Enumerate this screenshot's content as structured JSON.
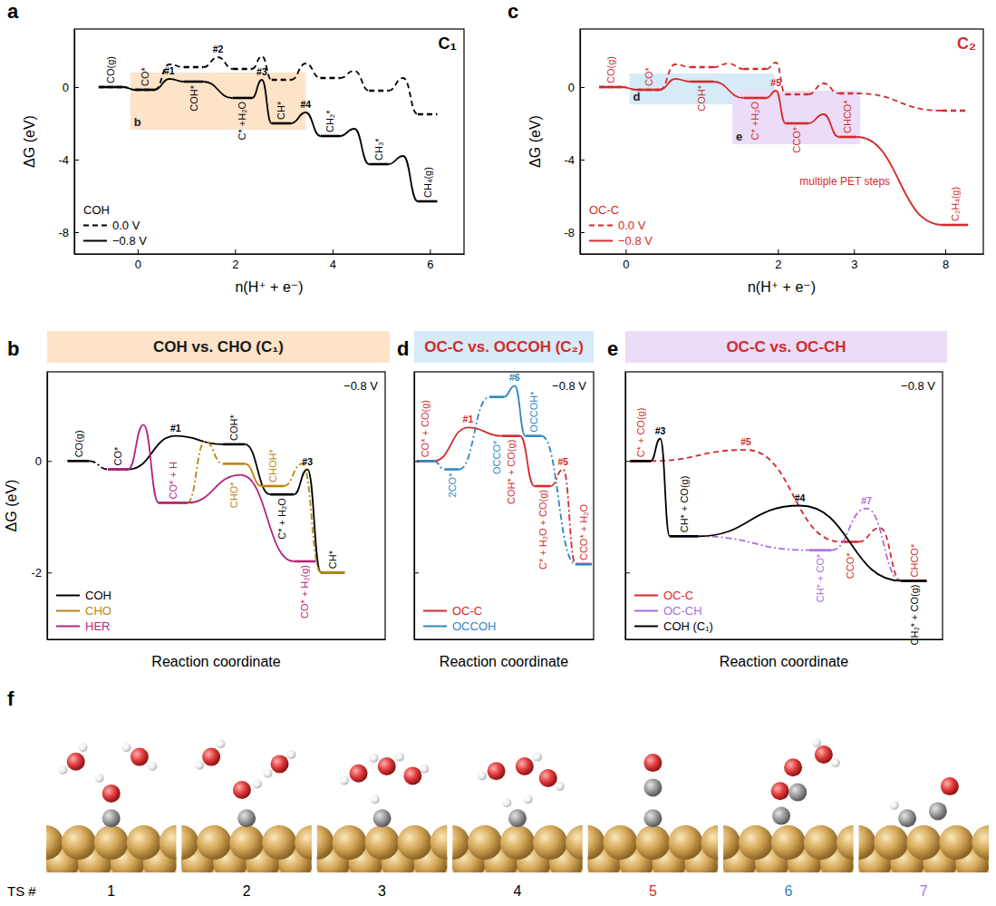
{
  "chart_data": [
    {
      "type": "energy_diagram",
      "panel": "a",
      "subtitle": "C₁",
      "x_label": "n(H⁺ + e⁻)",
      "y_label": "ΔG (eV)",
      "xlim": [
        -1.3,
        6.7
      ],
      "xticks": [
        0,
        2,
        4,
        6
      ],
      "ylim": [
        -9.2,
        3.2
      ],
      "yticks": [
        -8,
        -4,
        0
      ],
      "legend": "lower left",
      "legend_title": "COH",
      "regions": [
        {
          "label": "b",
          "x": [
            -0.15,
            3.45
          ],
          "y": [
            -2.35,
            0.8
          ],
          "color": "#fde3c8"
        }
      ],
      "series": [
        {
          "name": "0.0 V",
          "color": "#000000",
          "line_style": "dashed",
          "states": [
            {
              "x": [
                -0.8,
                -0.3
              ],
              "value": 0
            },
            {
              "x": [
                -0.05,
                0.35
              ],
              "value": -0.15
            },
            {
              "x": [
                0.95,
                1.35
              ],
              "value": 1.1
            },
            {
              "x": [
                1.95,
                2.35
              ],
              "value": 1
            },
            {
              "x": [
                2.75,
                3.15
              ],
              "value": 0.4
            },
            {
              "x": [
                3.75,
                4.15
              ],
              "value": 0.5
            },
            {
              "x": [
                4.75,
                5.15
              ],
              "value": -0.2
            },
            {
              "x": [
                5.75,
                6.15
              ],
              "value": -1.5
            }
          ],
          "barriers": [
            {
              "peak": null
            },
            {
              "peak": 1.25
            },
            {
              "peak": 1.65,
              "label": "#2"
            },
            {
              "peak": 1.7
            },
            {
              "peak": 1.3
            },
            {
              "peak": 0.9
            },
            {
              "peak": 0.5
            }
          ]
        },
        {
          "name": "−0.8 V",
          "color": "#000000",
          "line_style": "solid",
          "states": [
            {
              "label": "CO(g)",
              "x": [
                -0.8,
                -0.3
              ],
              "value": 0
            },
            {
              "label": "CO*",
              "x": [
                -0.05,
                0.35
              ],
              "value": -0.15
            },
            {
              "label": "COH*",
              "x": [
                0.95,
                1.35
              ],
              "value": 0.3
            },
            {
              "label": "C* +H₂O",
              "x": [
                1.95,
                2.35
              ],
              "value": -0.6
            },
            {
              "label": "CH*",
              "x": [
                2.75,
                3.15
              ],
              "value": -2
            },
            {
              "label": "CH₂*",
              "x": [
                3.75,
                4.15
              ],
              "value": -2.7
            },
            {
              "label": "CH₃*",
              "x": [
                4.75,
                5.15
              ],
              "value": -4.25
            },
            {
              "label": "CH₄(g)",
              "x": [
                5.75,
                6.15
              ],
              "value": -6.3
            }
          ],
          "barriers": [
            {
              "peak": null
            },
            {
              "peak": 0.45,
              "label": "#1"
            },
            {
              "peak": null
            },
            {
              "peak": 0.4,
              "label": "#3"
            },
            {
              "peak": -1.4,
              "label": "#4"
            },
            {
              "peak": -2.3
            },
            {
              "peak": -3.8
            }
          ]
        }
      ]
    },
    {
      "type": "energy_diagram",
      "panel": "b",
      "title": "COH vs. CHO (C₁)",
      "color": "#fde3c8",
      "condition": "−0.8 V",
      "x_label": "Reaction coordinate",
      "y_label": "ΔG (eV)",
      "xlim": [
        0,
        10
      ],
      "xticks": [],
      "ylim": [
        -3.2,
        1.6
      ],
      "yticks": [
        -2,
        0
      ],
      "tick_labels": "y",
      "legend": "lower left",
      "series": [
        {
          "name": "COH",
          "color": "#000000",
          "line_style": "solid",
          "states": [
            {
              "label": "CO(g)",
              "x": [
                0.6,
                1.25
              ],
              "value": 0
            },
            {
              "label": "CO*",
              "x": [
                1.8,
                2.4
              ],
              "value": -0.15
            },
            {
              "label": "COH*",
              "x": [
                5.2,
                5.85
              ],
              "value": 0.3
            },
            {
              "label": "C* + H₂O",
              "x": [
                6.6,
                7.3
              ],
              "value": -0.6
            },
            {
              "label": "CH*",
              "x": [
                8.1,
                8.8
              ],
              "value": -2
            }
          ],
          "barriers": [
            {
              "peak": null,
              "line_style": "dashdot"
            },
            {
              "peak": 0.45,
              "label": "#1"
            },
            {
              "peak": null
            },
            {
              "peak": -0.15,
              "label": "#3"
            }
          ]
        },
        {
          "name": "CHO",
          "color": "#b8860b",
          "line_style": "solid",
          "states": [
            {
              "x": [
                3.3,
                4.15
              ],
              "value": -0.75
            },
            {
              "label": "CHO*",
              "x": [
                5.2,
                5.85
              ],
              "value": -0.05
            },
            {
              "label": "CHOH*",
              "x": [
                6.35,
                7.0
              ],
              "value": -0.45
            },
            {
              "x": [
                8.1,
                8.8
              ],
              "value": -2
            }
          ],
          "barriers": [
            {
              "peak": 0.35,
              "line_style": "dashdot"
            },
            {
              "peak": null
            },
            {
              "peak": -0.05,
              "line_style": "dashdot"
            }
          ]
        },
        {
          "name": "HER",
          "color": "#b5247e",
          "line_style": "solid",
          "states": [
            {
              "x": [
                1.8,
                2.4
              ],
              "value": -0.15
            },
            {
              "label": "CO* + H",
              "x": [
                3.3,
                4.15
              ],
              "value": -0.75
            },
            {
              "label": "CO* + H₂(g)",
              "x": [
                7.3,
                7.95
              ],
              "value": -1.8
            }
          ],
          "barriers": [
            {
              "peak": 0.65
            },
            {
              "peak": -0.25
            }
          ]
        }
      ]
    },
    {
      "type": "energy_diagram",
      "panel": "c",
      "subtitle": "C₂",
      "x_label": "n(H⁺ + e⁻)",
      "y_label": "ΔG (eV)",
      "xlim": [
        -0.6,
        8.5
      ],
      "xticks": [
        0,
        2,
        3,
        8
      ],
      "ylim": [
        -9.2,
        3.2
      ],
      "yticks": [
        -8,
        -4,
        0
      ],
      "legend": "lower left",
      "legend_title": "OC-C",
      "annotation": "multiple PET steps",
      "regions": [
        {
          "label": "d",
          "x": [
            0.05,
            1.95
          ],
          "y": [
            -0.95,
            0.75
          ],
          "color": "#d6eaf8"
        },
        {
          "label": "e",
          "x": [
            1.4,
            3.35
          ],
          "y": [
            -3.15,
            -0.2
          ],
          "color": "#ebdcf7"
        }
      ],
      "series": [
        {
          "name": "0.0 V",
          "color": "#d42a2a",
          "line_style": "dashed",
          "states": [
            {
              "x": [
                -0.35,
                -0.05
              ],
              "value": 0
            },
            {
              "x": [
                0.15,
                0.45
              ],
              "value": -0.15
            },
            {
              "x": [
                0.85,
                1.15
              ],
              "value": 1.1
            },
            {
              "x": [
                1.55,
                1.85
              ],
              "value": 1
            },
            {
              "x": [
                2.1,
                2.4
              ],
              "value": -0.4
            },
            {
              "x": [
                2.8,
                3.15
              ],
              "value": -0.35
            },
            {
              "x": [
                7.8,
                8.3
              ],
              "value": -1.3
            }
          ],
          "barriers": [
            {
              "peak": null
            },
            {
              "peak": 1.25
            },
            {
              "peak": 1.3
            },
            {
              "peak": 1.35
            },
            {
              "peak": 0.2
            },
            {
              "peak": null
            }
          ]
        },
        {
          "name": "−0.8 V",
          "color": "#d42a2a",
          "line_style": "solid",
          "states": [
            {
              "label": "CO(g)",
              "x": [
                -0.35,
                -0.05
              ],
              "value": 0
            },
            {
              "label": "CO*",
              "x": [
                0.15,
                0.45
              ],
              "value": -0.15
            },
            {
              "label": "COH*",
              "x": [
                0.85,
                1.15
              ],
              "value": 0.3
            },
            {
              "label": "C* +H₂O",
              "x": [
                1.55,
                1.85
              ],
              "value": -0.6
            },
            {
              "label": "CCO*",
              "x": [
                2.1,
                2.4
              ],
              "value": -2
            },
            {
              "label": "CHCO*",
              "x": [
                2.8,
                3.15
              ],
              "value": -2.75
            },
            {
              "label": "C₂H₄(g)",
              "x": [
                7.8,
                8.3
              ],
              "value": -7.6
            }
          ],
          "barriers": [
            {
              "peak": null
            },
            {
              "peak": 0.45
            },
            {
              "peak": null
            },
            {
              "peak": -0.2,
              "label": "#5"
            },
            {
              "peak": -1.5
            },
            {
              "peak": null
            }
          ]
        }
      ]
    },
    {
      "type": "energy_diagram",
      "panel": "d",
      "title": "OC-C vs. OCCOH (C₂)",
      "color": "#d6eaf8",
      "condition": "−0.8 V",
      "x_label": "Reaction coordinate",
      "xlim": [
        0,
        10
      ],
      "xticks": [],
      "ylim": [
        -3.2,
        1.6
      ],
      "yticks": [
        -2,
        0
      ],
      "tick_labels": false,
      "legend": "lower left",
      "series": [
        {
          "name": "OC-C",
          "color": "#d42a2a",
          "line_style": "solid",
          "states": [
            {
              "label": "CO* + CO(g)",
              "x": [
                0.15,
                1.1
              ],
              "value": 0
            },
            {
              "label": "COH* + CO(g)",
              "x": [
                4.9,
                5.9
              ],
              "value": 0.45
            },
            {
              "label": "C* + H₂O + CO(g)",
              "x": [
                6.7,
                7.6
              ],
              "value": -0.45
            },
            {
              "label": "CCO* + H₂O",
              "x": [
                9.0,
                9.9
              ],
              "value": -1.85
            }
          ],
          "barriers": [
            {
              "peak": 0.6,
              "label": "#1"
            },
            {
              "peak": null
            },
            {
              "peak": -0.15,
              "label": "#5",
              "line_style": "dashdot"
            }
          ]
        },
        {
          "name": "OCCOH",
          "color": "#2e86c1",
          "line_style": "solid",
          "states": [
            {
              "x": [
                0.15,
                1.1
              ],
              "value": 0
            },
            {
              "label": "2CO*",
              "x": [
                1.7,
                2.5
              ],
              "value": -0.15
            },
            {
              "label": "OCCO*",
              "x": [
                4.2,
                5.0
              ],
              "value": 1.15
            },
            {
              "label": "OCCOH*",
              "x": [
                6.2,
                7.1
              ],
              "value": 0.45
            },
            {
              "x": [
                9.0,
                9.9
              ],
              "value": -1.85
            }
          ],
          "barriers": [
            {
              "peak": null,
              "line_style": "dashdot"
            },
            {
              "peak": null,
              "line_style": "dashdot"
            },
            {
              "peak": 1.35,
              "label": "#6"
            },
            {
              "peak": null,
              "line_style": "dashdot"
            }
          ]
        }
      ]
    },
    {
      "type": "energy_diagram",
      "panel": "e",
      "title": "OC-C vs. OC-CH",
      "color": "#ebdcf7",
      "condition": "−0.8 V",
      "x_label": "Reaction coordinate",
      "xlim": [
        0,
        10
      ],
      "xticks": [],
      "ylim": [
        -3.2,
        1.6
      ],
      "yticks": [
        -2,
        0
      ],
      "tick_labels": false,
      "legend": "lower left",
      "series": [
        {
          "name": "OC-C",
          "color": "#d42a2a",
          "line_style": "solid",
          "states": [
            {
              "label": "C* + CO(g)",
              "x": [
                0.15,
                0.8
              ],
              "value": 0
            },
            {
              "label": "CCO*",
              "x": [
                6.8,
                7.35
              ],
              "value": -1.45
            },
            {
              "label": "CHCO*",
              "x": [
                8.7,
                9.5
              ],
              "value": -2.15
            }
          ],
          "barriers": [
            {
              "peak": 0.2,
              "label": "#5",
              "line_style": "dashed"
            },
            {
              "peak": -1.2,
              "line_style": "dashed"
            }
          ]
        },
        {
          "name": "OC-CH",
          "color": "#a86fe0",
          "line_style": "solid",
          "states": [
            {
              "x": [
                1.4,
                2.3
              ],
              "value": -1.35
            },
            {
              "label": "CH* + CO*",
              "x": [
                5.8,
                6.5
              ],
              "value": -1.6
            },
            {
              "x": [
                8.7,
                9.5
              ],
              "value": -2.15
            }
          ],
          "barriers": [
            {
              "peak": null,
              "line_style": "dashdot"
            },
            {
              "peak": -0.85,
              "label": "#7",
              "line_style": "dashdot"
            }
          ]
        },
        {
          "name": "COH (C₁)",
          "color": "#000000",
          "line_style": "solid",
          "states": [
            {
              "x": [
                0.15,
                0.8
              ],
              "value": 0
            },
            {
              "label": "CH* + CO(g)",
              "x": [
                1.4,
                2.3
              ],
              "value": -1.35
            },
            {
              "label": "CH₂* + CO(g)",
              "x": [
                8.7,
                9.5
              ],
              "value": -2.15
            }
          ],
          "barriers": [
            {
              "peak": 0.4,
              "label": "#3"
            },
            {
              "peak": -0.8,
              "label": "#4"
            }
          ]
        }
      ]
    },
    {
      "type": "image_row",
      "panel": "f",
      "title": "TS #",
      "categories": [
        "1",
        "2",
        "3",
        "4",
        "5",
        "6",
        "7"
      ],
      "colors": [
        "#000000",
        "#000000",
        "#000000",
        "#000000",
        "#d42a2a",
        "#2e86c1",
        "#a86fe0"
      ]
    }
  ]
}
